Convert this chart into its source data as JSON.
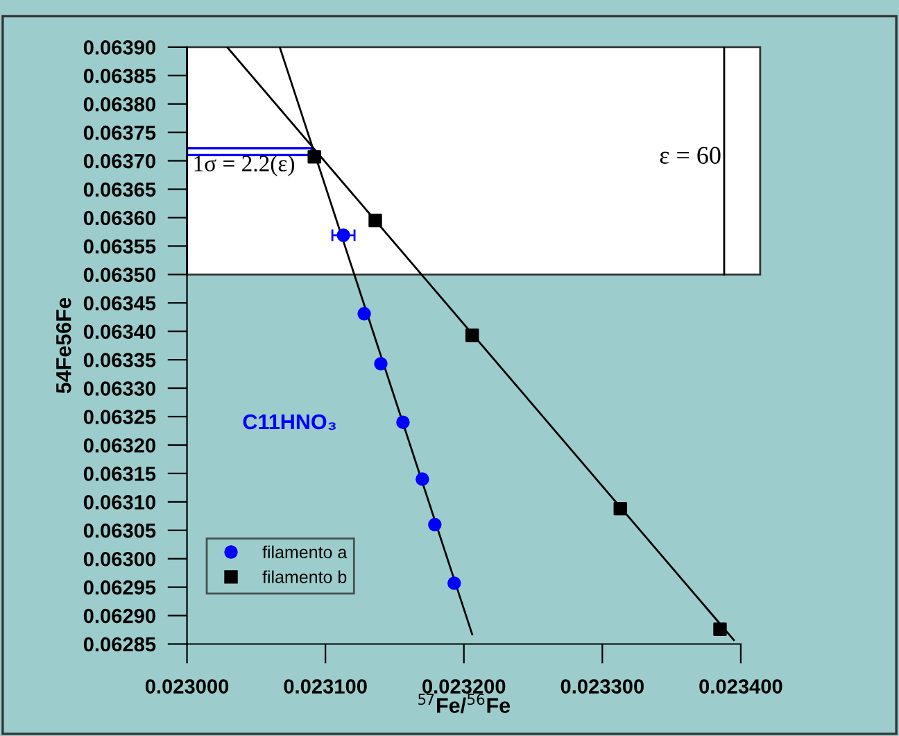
{
  "chart_data": {
    "type": "scatter",
    "xlabel": "$^{57}$Fe/$^{56}$Fe",
    "ylabel": "54Fe56Fe",
    "xlim": [
      0.023,
      0.0234
    ],
    "ylim": [
      0.06285,
      0.0639
    ],
    "xticks": [
      {
        "value": 0.023,
        "label": "0.023000"
      },
      {
        "value": 0.0231,
        "label": "0.023100"
      },
      {
        "value": 0.0232,
        "label": "0.023200"
      },
      {
        "value": 0.0233,
        "label": "0.023300"
      },
      {
        "value": 0.0234,
        "label": "0.023400"
      }
    ],
    "yticks": [
      {
        "value": 0.06285,
        "label": "0.06285"
      },
      {
        "value": 0.0629,
        "label": "0.06290"
      },
      {
        "value": 0.06295,
        "label": "0.06295"
      },
      {
        "value": 0.063,
        "label": "0.06300"
      },
      {
        "value": 0.06305,
        "label": "0.06305"
      },
      {
        "value": 0.0631,
        "label": "0.06310"
      },
      {
        "value": 0.06315,
        "label": "0.06315"
      },
      {
        "value": 0.0632,
        "label": "0.06320"
      },
      {
        "value": 0.06325,
        "label": "0.06325"
      },
      {
        "value": 0.0633,
        "label": "0.06330"
      },
      {
        "value": 0.06335,
        "label": "0.06335"
      },
      {
        "value": 0.0634,
        "label": "0.06340"
      },
      {
        "value": 0.06345,
        "label": "0.06345"
      },
      {
        "value": 0.0635,
        "label": "0.06350"
      },
      {
        "value": 0.06355,
        "label": "0.06355"
      },
      {
        "value": 0.0636,
        "label": "0.06360"
      },
      {
        "value": 0.06365,
        "label": "0.06365"
      },
      {
        "value": 0.0637,
        "label": "0.06370"
      },
      {
        "value": 0.06375,
        "label": "0.06375"
      },
      {
        "value": 0.0638,
        "label": "0.06380"
      },
      {
        "value": 0.06385,
        "label": "0.06385"
      },
      {
        "value": 0.0639,
        "label": "0.06390"
      }
    ],
    "series": [
      {
        "name": "filamento a",
        "color": "#0000ff",
        "marker": "circle",
        "x": [
          0.023113,
          0.023128,
          0.02314,
          0.023156,
          0.02317,
          0.023179,
          0.023193
        ],
        "values": [
          0.063569,
          0.063431,
          0.063343,
          0.06324,
          0.06314,
          0.06306,
          0.062957
        ],
        "xerrors": [
          8e-06,
          null,
          null,
          null,
          null,
          null,
          null
        ]
      },
      {
        "name": "filamento b",
        "color": "#000000",
        "marker": "square",
        "x": [
          0.023092,
          0.023136,
          0.023206,
          0.023313,
          0.023385
        ],
        "values": [
          0.063707,
          0.063595,
          0.063393,
          0.063088,
          0.062876
        ]
      },
      {
        "type": "line",
        "color": "#000000",
        "x": [
          0.023067,
          0.023206
        ],
        "values": [
          0.0639,
          0.062867
        ]
      },
      {
        "type": "line",
        "color": "#000000",
        "x": [
          0.023029,
          0.023395
        ],
        "values": [
          0.0639,
          0.062857
        ]
      }
    ],
    "bands": [
      {
        "axis": "y",
        "from": 0.0635,
        "to": 0.0639,
        "color": "#ffffff"
      },
      {
        "axis": "y",
        "from": 0.06371,
        "to": 0.063722,
        "color": "#0000ff",
        "label": "1σ = 2.2(ε)"
      }
    ],
    "ref_lines": [
      {
        "axis": "x",
        "value": 0.023388,
        "color": "#000000"
      }
    ],
    "annotations": [
      "C11HNO₃",
      "ε = 60"
    ],
    "grid": false,
    "legend": "bottom left"
  }
}
